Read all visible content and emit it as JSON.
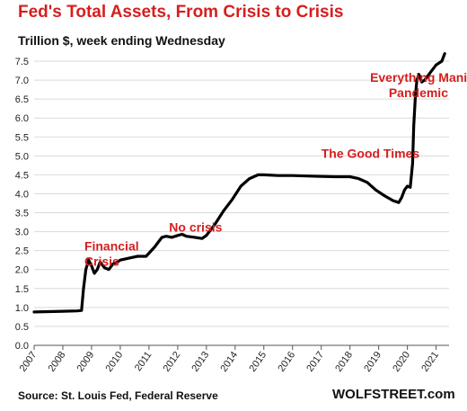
{
  "title": "Fed's Total Assets, From Crisis to Crisis",
  "subtitle": "Trillion $, week ending Wednesday",
  "source": "Source: St. Louis Fed, Federal Reserve",
  "brand": "WOLFSTREET.com",
  "colors": {
    "title": "#d61e1e",
    "line": "#000000",
    "annotation": "#d61e1e",
    "grid": "#d9d9d9",
    "axis": "#555555"
  },
  "chart_data": {
    "type": "line",
    "xlabel": "",
    "ylabel": "",
    "xlim": [
      2007,
      2021.45
    ],
    "ylim": [
      0,
      7.5
    ],
    "grid": true,
    "x_ticks": [
      "2007",
      "2008",
      "2009",
      "2010",
      "2011",
      "2012",
      "2013",
      "2014",
      "2015",
      "2016",
      "2017",
      "2018",
      "2019",
      "2020",
      "2021"
    ],
    "y_ticks": [
      "0.0",
      "0.5",
      "1.0",
      "1.5",
      "2.0",
      "2.5",
      "3.0",
      "3.5",
      "4.0",
      "4.5",
      "5.0",
      "5.5",
      "6.0",
      "6.5",
      "7.0",
      "7.5"
    ],
    "series": [
      {
        "x": [
          2007.0,
          2007.5,
          2008.0,
          2008.5,
          2008.65,
          2008.72,
          2008.8,
          2008.9,
          2009.0,
          2009.1,
          2009.2,
          2009.3,
          2009.45,
          2009.6,
          2009.75,
          2009.9,
          2010.0,
          2010.3,
          2010.6,
          2010.9,
          2011.2,
          2011.45,
          2011.6,
          2011.8,
          2012.0,
          2012.15,
          2012.3,
          2012.6,
          2012.85,
          2013.0,
          2013.3,
          2013.6,
          2013.9,
          2014.2,
          2014.5,
          2014.8,
          2015.0,
          2015.5,
          2016.0,
          2016.5,
          2017.0,
          2017.5,
          2018.0,
          2018.3,
          2018.6,
          2018.9,
          2019.2,
          2019.5,
          2019.7,
          2019.8,
          2019.9,
          2020.0,
          2020.1,
          2020.18,
          2020.22,
          2020.28,
          2020.33,
          2020.4,
          2020.5,
          2020.6,
          2020.8,
          2021.0,
          2021.2,
          2021.3
        ],
        "y": [
          0.88,
          0.89,
          0.9,
          0.91,
          0.92,
          1.5,
          2.0,
          2.25,
          2.1,
          1.9,
          2.0,
          2.2,
          2.05,
          2.0,
          2.15,
          2.2,
          2.25,
          2.3,
          2.35,
          2.35,
          2.6,
          2.85,
          2.88,
          2.85,
          2.9,
          2.93,
          2.88,
          2.85,
          2.82,
          2.9,
          3.2,
          3.55,
          3.85,
          4.2,
          4.4,
          4.5,
          4.5,
          4.48,
          4.48,
          4.47,
          4.46,
          4.45,
          4.45,
          4.4,
          4.3,
          4.1,
          3.95,
          3.82,
          3.77,
          3.9,
          4.1,
          4.2,
          4.17,
          4.8,
          5.8,
          6.6,
          7.0,
          7.15,
          6.95,
          7.0,
          7.2,
          7.4,
          7.5,
          7.7
        ]
      }
    ],
    "annotations": [
      {
        "text": "Financial",
        "x": 2008.75,
        "y": 2.5
      },
      {
        "text": "Crisis",
        "x": 2008.75,
        "y": 2.1
      },
      {
        "text": "No crisis",
        "x": 2011.7,
        "y": 3.0
      },
      {
        "text": "The Good Times",
        "x": 2017.0,
        "y": 4.95
      },
      {
        "text": "Everything Mania",
        "x": 2018.7,
        "y": 6.95
      },
      {
        "text": "Pandemic",
        "x": 2019.35,
        "y": 6.55
      }
    ]
  }
}
